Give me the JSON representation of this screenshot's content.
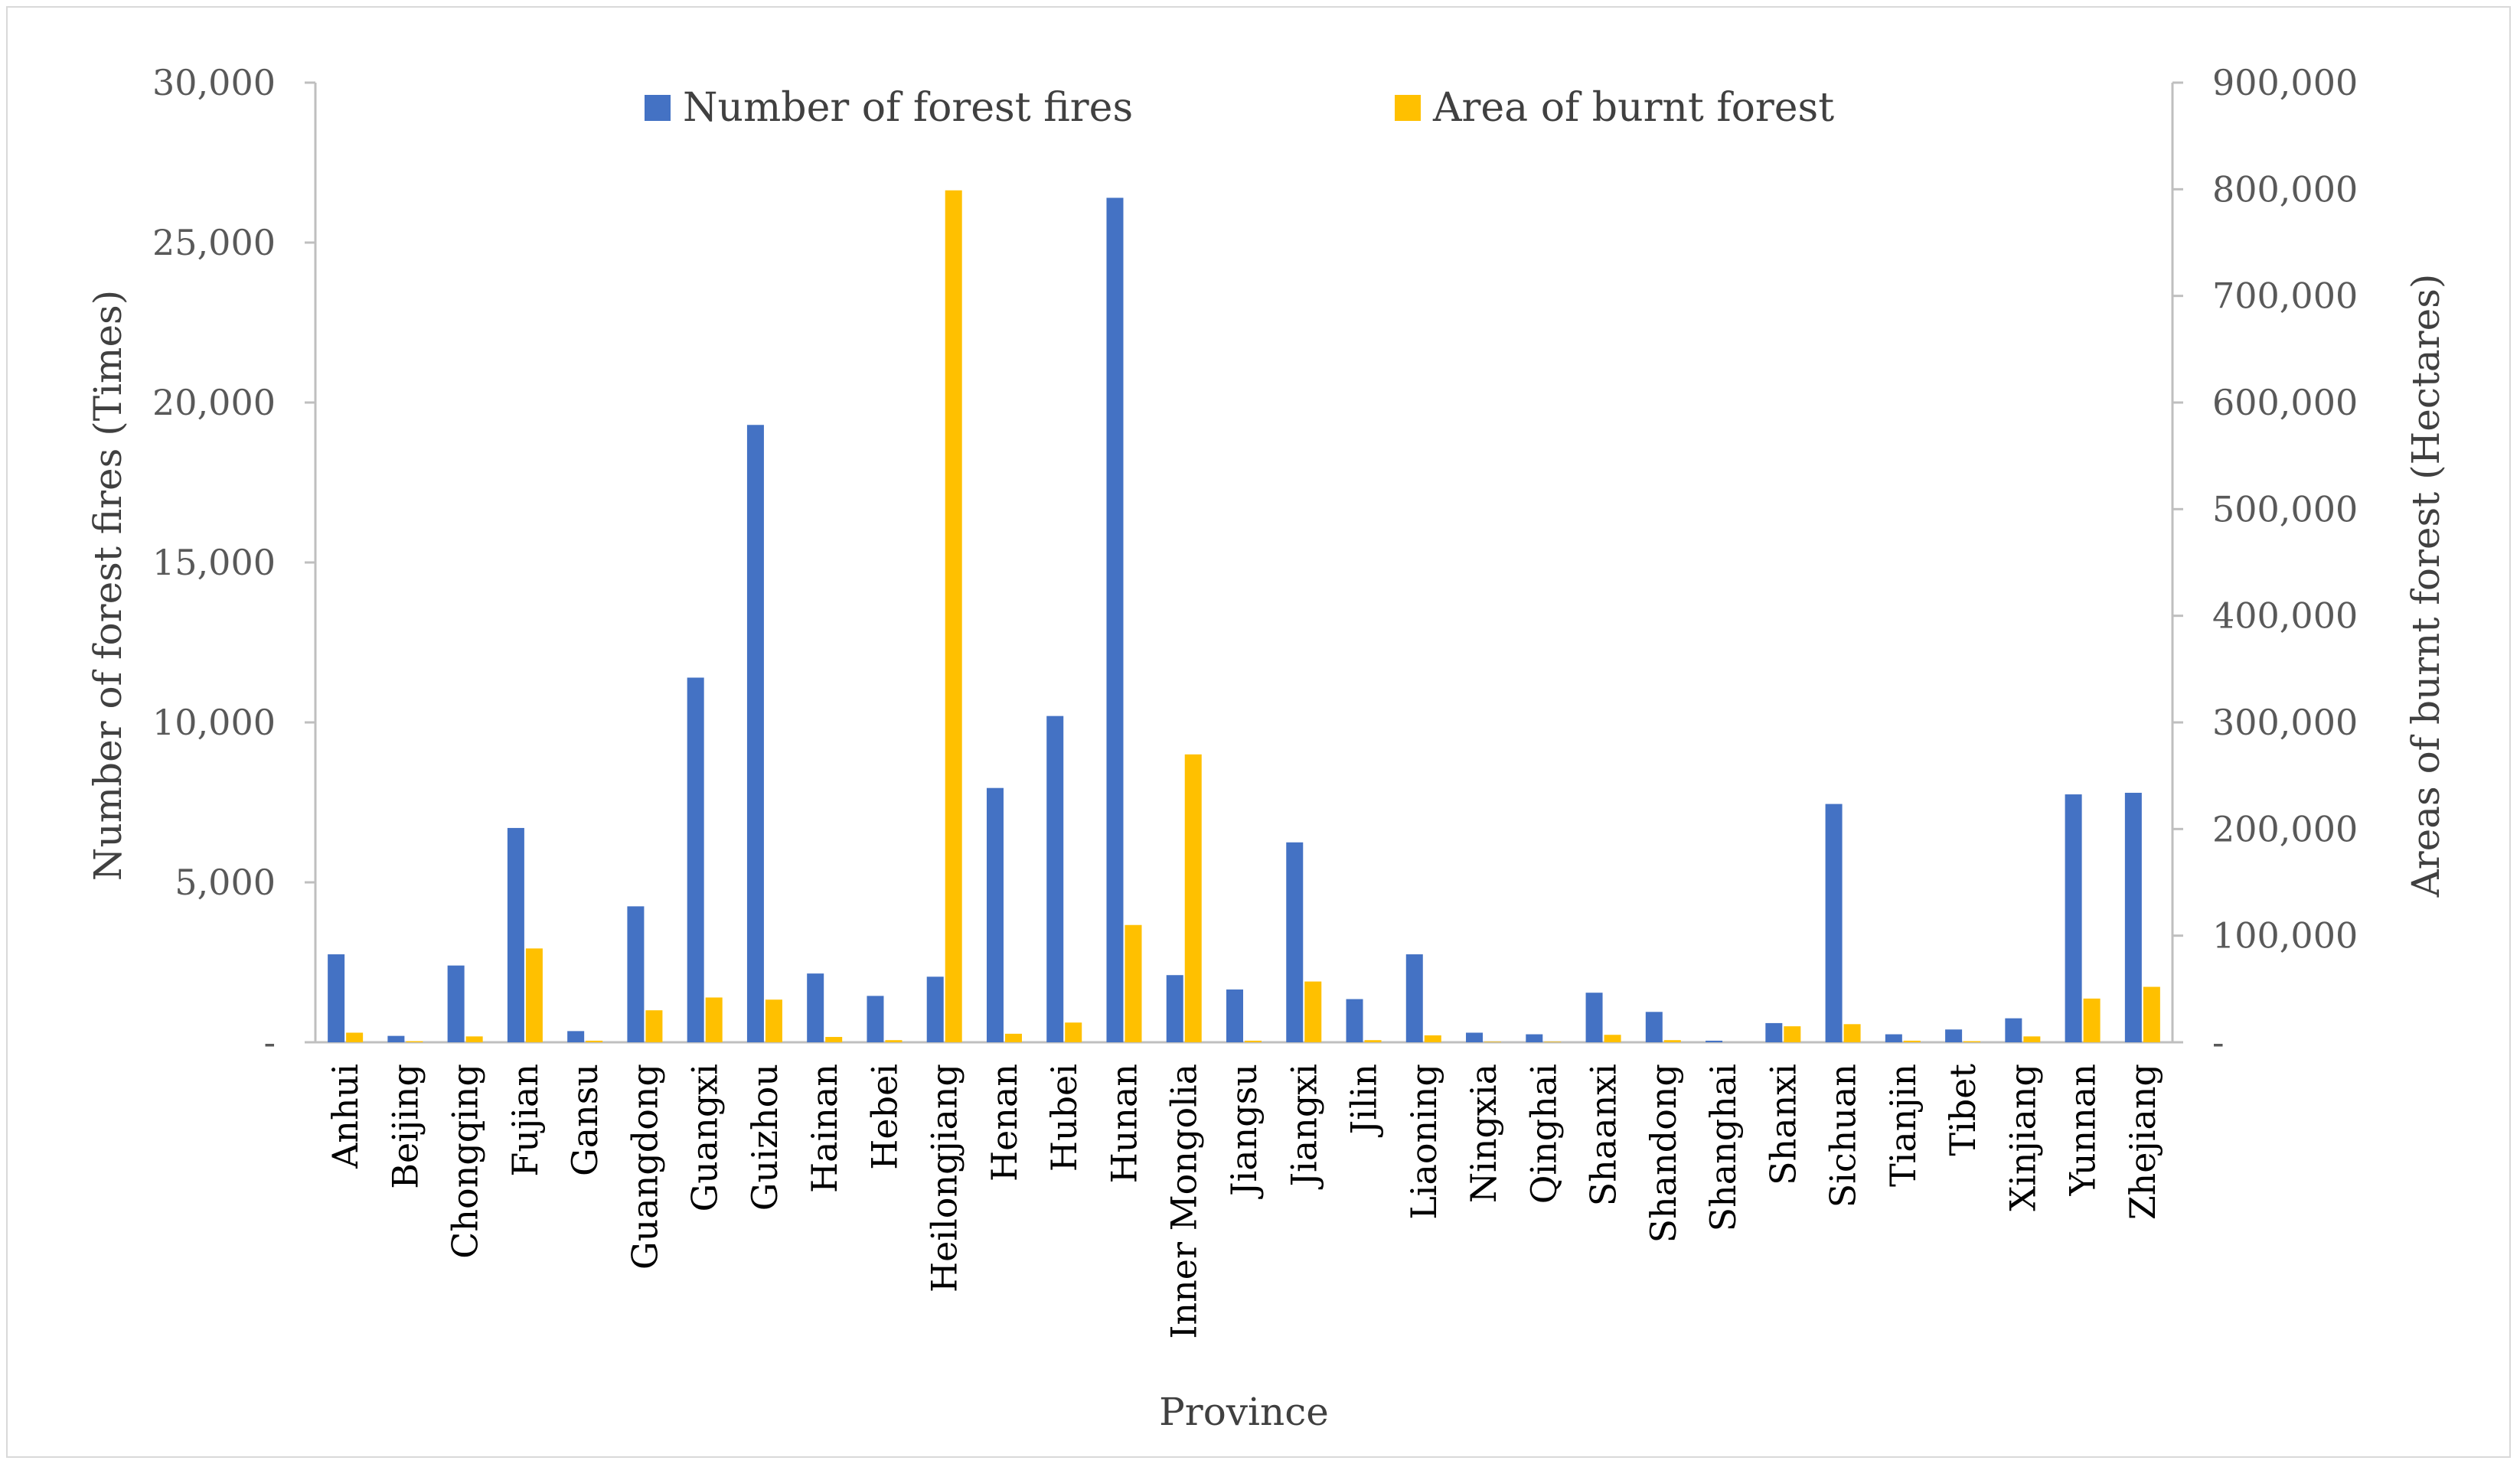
{
  "chart_data": {
    "type": "bar",
    "xlabel": "Province",
    "ylabel_left": "Number of forest fires (Times)",
    "ylabel_right": "Areas of burnt forest (Hectares)",
    "ylim_left": [
      0,
      30000
    ],
    "ylim_right": [
      0,
      900000
    ],
    "yticks_left": [
      "-",
      "5,000",
      "10,000",
      "15,000",
      "20,000",
      "25,000",
      "30,000"
    ],
    "yticks_right": [
      "-",
      "100,000",
      "200,000",
      "300,000",
      "400,000",
      "500,000",
      "600,000",
      "700,000",
      "800,000",
      "900,000"
    ],
    "legend_position": "top",
    "grid": false,
    "categories": [
      "Anhui",
      "Beijing",
      "Chongqing",
      "Fujian",
      "Gansu",
      "Guangdong",
      "Guangxi",
      "Guizhou",
      "Hainan",
      "Hebei",
      "Heilongjiang",
      "Henan",
      "Hubei",
      "Hunan",
      "Inner Mongolia",
      "Jiangsu",
      "Jiangxi",
      "Jilin",
      "Liaoning",
      "Ningxia",
      "Qinghai",
      "Shaanxi",
      "Shandong",
      "Shanghai",
      "Shanxi",
      "Sichuan",
      "Tianjin",
      "Tibet",
      "Xinjiang",
      "Yunnan",
      "Zhejiang"
    ],
    "series": [
      {
        "name": "Number of forest fires",
        "axis": "left",
        "color": "#4472C4",
        "values": [
          2750,
          200,
          2400,
          6700,
          350,
          4250,
          11400,
          19300,
          2150,
          1450,
          2050,
          7950,
          10200,
          26400,
          2100,
          1650,
          6250,
          1350,
          2750,
          300,
          250,
          1550,
          950,
          50,
          600,
          7450,
          250,
          400,
          750,
          7750,
          7800
        ]
      },
      {
        "name": "Area of burnt forest",
        "axis": "right",
        "color": "#FFC000",
        "values": [
          9000,
          1000,
          5500,
          88000,
          1500,
          30000,
          42000,
          40000,
          5000,
          2000,
          799000,
          8000,
          18500,
          110000,
          270000,
          1500,
          57000,
          2000,
          6500,
          500,
          500,
          7000,
          2000,
          0,
          15000,
          17000,
          1500,
          1000,
          5500,
          41000,
          52000
        ]
      }
    ]
  }
}
